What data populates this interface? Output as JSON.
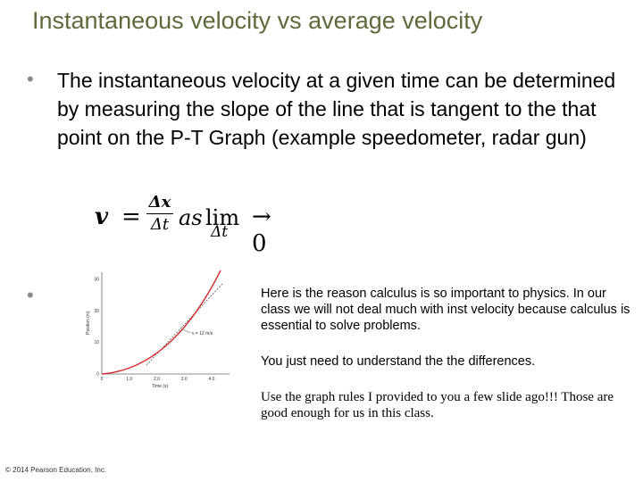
{
  "slide": {
    "title": "Instantaneous velocity vs average velocity",
    "bullet1_text": "The instantaneous velocity at a given time can be determined by measuring the slope of the line that is tangent to the that point on the P-T Graph (example speedometer, radar gun)",
    "formula": {
      "v": "v",
      "eq": "=",
      "num": "Δx",
      "den": "Δt",
      "as": "as",
      "lim": "lim",
      "lim_sub": "Δt",
      "arrow_zero": "→ 0"
    },
    "right_text_1": "Here is the reason calculus is so important to physics.  In our class we will not deal much with inst velocity because calculus is essential to solve problems.",
    "right_text_2": "You just need to understand the the differences.",
    "right_text_3": "Use the graph rules I provided to you a few slide ago!!! Those are good enough for us in this class.",
    "footer": "© 2014 Pearson Education, Inc."
  },
  "graph": {
    "y_label": "Position (m)",
    "x_label": "Time (s)",
    "y_ticks": [
      "0",
      "10",
      "20",
      "30"
    ],
    "x_ticks": [
      "0",
      "1.0",
      "2.0",
      "3.0",
      "4.0"
    ],
    "slope_label": "v = 12 m/s",
    "curve_color": "#d32f2f",
    "tangent_color": "#555555"
  }
}
